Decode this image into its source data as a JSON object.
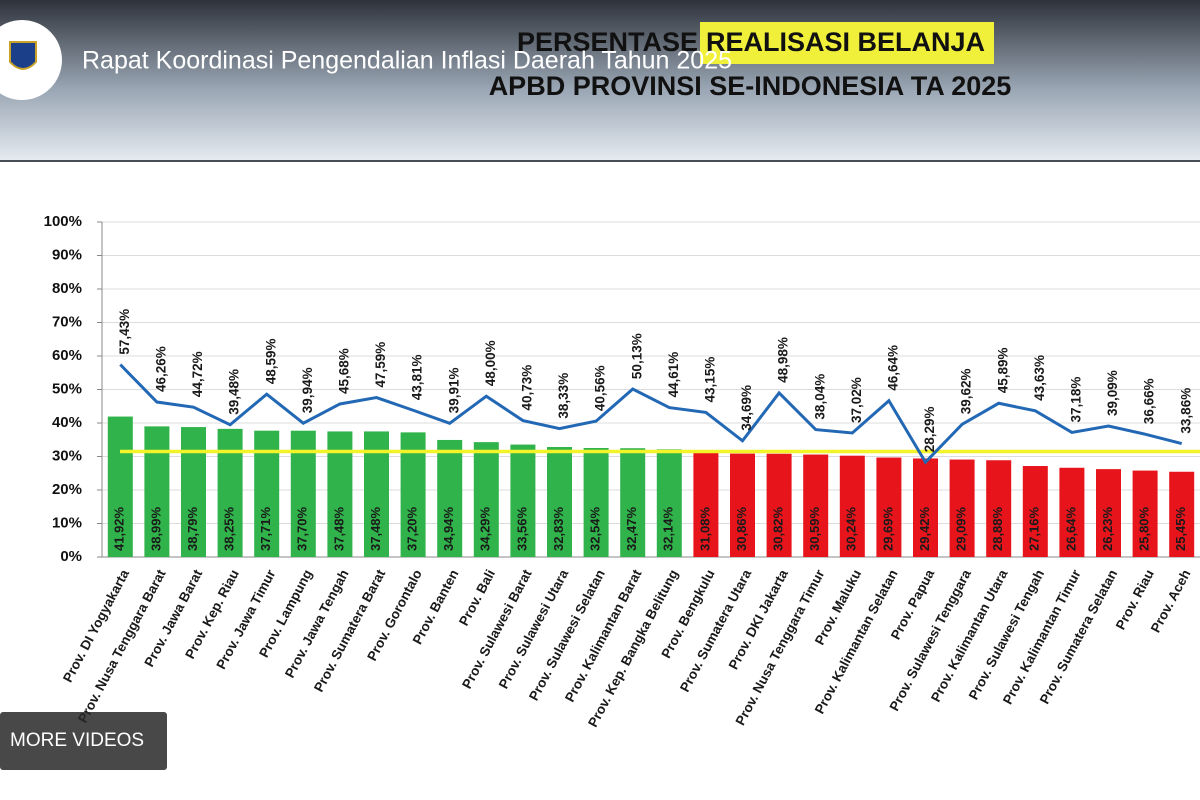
{
  "video": {
    "title": "Rapat Koordinasi Pengendalian Inflasi Daerah Tahun 2025",
    "more_videos": "MORE VIDEOS"
  },
  "chart_data": {
    "type": "bar_line",
    "title_start": "PERSENTASE",
    "title_highlight": "REALISASI BELANJA",
    "title_line2": "APBD PROVINSI SE-INDONESIA TA 2025",
    "categories": [
      "Prov. DI Yogyakarta",
      "Prov. Nusa Tenggara Barat",
      "Prov. Jawa Barat",
      "Prov. Kep. Riau",
      "Prov. Jawa Timur",
      "Prov. Lampung",
      "Prov. Jawa Tengah",
      "Prov. Sumatera Barat",
      "Prov. Gorontalo",
      "Prov. Banten",
      "Prov. Bali",
      "Prov. Sulawesi Barat",
      "Prov. Sulawesi Utara",
      "Prov. Sulawesi Selatan",
      "Prov. Kalimantan Barat",
      "Prov. Kep. Bangka Belitung",
      "Prov. Bengkulu",
      "Prov. Sumatera Utara",
      "Prov. DKI Jakarta",
      "Prov. Nusa Tenggara Timur",
      "Prov. Maluku",
      "Prov. Kalimantan Selatan",
      "Prov. Papua",
      "Prov. Sulawesi Tenggara",
      "Prov. Kalimantan Utara",
      "Prov. Sulawesi Tengah",
      "Prov. Kalimantan Timur",
      "Prov. Sumatera Selatan",
      "Prov. Riau",
      "Prov. Aceh"
    ],
    "series": [
      {
        "type": "bar",
        "values": [
          41.92,
          38.99,
          38.79,
          38.25,
          37.71,
          37.7,
          37.48,
          37.48,
          37.2,
          34.94,
          34.29,
          33.56,
          32.83,
          32.54,
          32.47,
          32.14,
          31.08,
          30.86,
          30.82,
          30.59,
          30.24,
          29.69,
          29.42,
          29.09,
          28.88,
          27.16,
          26.64,
          26.23,
          25.8,
          25.45
        ],
        "value_labels": [
          "41,92%",
          "38,99%",
          "38,79%",
          "38,25%",
          "37,71%",
          "37,70%",
          "37,48%",
          "37,48%",
          "37,20%",
          "34,94%",
          "34,29%",
          "33,56%",
          "32,83%",
          "32,54%",
          "32,47%",
          "32,14%",
          "31,08%",
          "30,86%",
          "30,82%",
          "30,59%",
          "30,24%",
          "29,69%",
          "29,42%",
          "29,09%",
          "28,88%",
          "27,16%",
          "26,64%",
          "26,23%",
          "25,80%",
          "25,45%"
        ],
        "colors": [
          "#2fb34a",
          "#2fb34a",
          "#2fb34a",
          "#2fb34a",
          "#2fb34a",
          "#2fb34a",
          "#2fb34a",
          "#2fb34a",
          "#2fb34a",
          "#2fb34a",
          "#2fb34a",
          "#2fb34a",
          "#2fb34a",
          "#2fb34a",
          "#2fb34a",
          "#2fb34a",
          "#e8141c",
          "#e8141c",
          "#e8141c",
          "#e8141c",
          "#e8141c",
          "#e8141c",
          "#e8141c",
          "#e8141c",
          "#e8141c",
          "#e8141c",
          "#e8141c",
          "#e8141c",
          "#e8141c",
          "#e8141c"
        ]
      },
      {
        "type": "line",
        "color": "#2268b5",
        "values": [
          57.43,
          46.26,
          44.72,
          39.48,
          48.59,
          39.94,
          45.68,
          47.59,
          43.81,
          39.91,
          48.0,
          40.73,
          38.33,
          40.56,
          50.13,
          44.61,
          43.15,
          34.69,
          48.98,
          38.04,
          37.02,
          46.64,
          28.29,
          39.62,
          45.89,
          43.63,
          37.18,
          39.09,
          36.66,
          33.86
        ],
        "value_labels": [
          "57,43%",
          "46,26%",
          "44,72%",
          "39,48%",
          "48,59%",
          "39,94%",
          "45,68%",
          "47,59%",
          "43,81%",
          "39,91%",
          "48,00%",
          "40,73%",
          "38,33%",
          "40,56%",
          "50,13%",
          "44,61%",
          "43,15%",
          "34,69%",
          "48,98%",
          "38,04%",
          "37,02%",
          "46,64%",
          "28,29%",
          "39,62%",
          "45,89%",
          "43,63%",
          "37,18%",
          "39,09%",
          "36,66%",
          "33,86%"
        ]
      }
    ],
    "reference_line": {
      "value": 31.5,
      "color": "#f3f32a"
    },
    "ylim": [
      0,
      100
    ],
    "yticks": [
      {
        "value": 0,
        "label": "0%"
      },
      {
        "value": 10,
        "label": "10%"
      },
      {
        "value": 20,
        "label": "20%"
      },
      {
        "value": 30,
        "label": "30%"
      },
      {
        "value": 40,
        "label": "40%"
      },
      {
        "value": 50,
        "label": "50%"
      },
      {
        "value": 60,
        "label": "60%"
      },
      {
        "value": 70,
        "label": "70%"
      },
      {
        "value": 80,
        "label": "80%"
      },
      {
        "value": 90,
        "label": "90%"
      },
      {
        "value": 100,
        "label": "100%"
      }
    ],
    "grid": true
  }
}
